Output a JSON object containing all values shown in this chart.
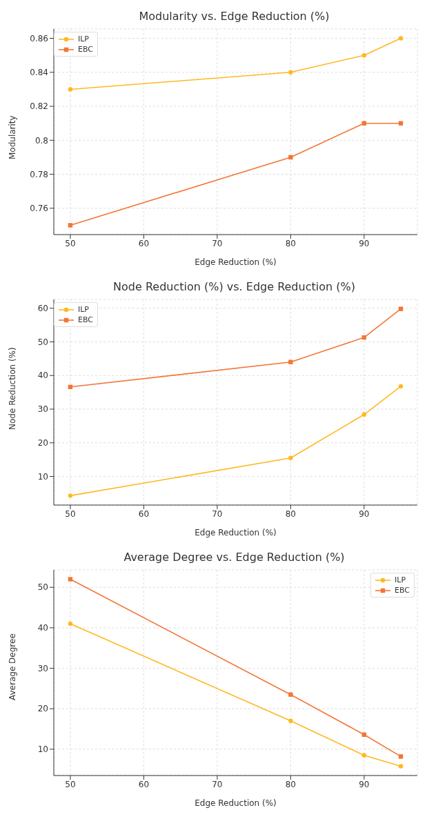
{
  "chart_data": [
    {
      "type": "line",
      "title": "Modularity vs. Edge Reduction (%)",
      "xlabel": "Edge Reduction (%)",
      "ylabel": "Modularity",
      "x": [
        50,
        80,
        90,
        95
      ],
      "series": [
        {
          "name": "ILP",
          "color": "#ffb81f",
          "marker": "circle",
          "values": [
            0.83,
            0.84,
            0.85,
            0.86
          ]
        },
        {
          "name": "EBC",
          "color": "#f47535",
          "marker": "square",
          "values": [
            0.75,
            0.79,
            0.81,
            0.81
          ]
        }
      ],
      "xlim": [
        47.75,
        97.25
      ],
      "xticks": [
        50,
        60,
        70,
        80,
        90
      ],
      "ylim": [
        0.7445,
        0.8655
      ],
      "yticks": [
        0.76,
        0.78,
        0.8,
        0.82,
        0.84,
        0.86
      ],
      "grid": true,
      "legend": "top left"
    },
    {
      "type": "line",
      "title": "Node Reduction (%) vs. Edge Reduction (%)",
      "xlabel": "Edge Reduction (%)",
      "ylabel": "Node Reduction (%)",
      "x": [
        50,
        80,
        90,
        95
      ],
      "series": [
        {
          "name": "ILP",
          "color": "#ffb81f",
          "marker": "circle",
          "values": [
            4.3,
            15.5,
            28.4,
            36.8
          ]
        },
        {
          "name": "EBC",
          "color": "#f47535",
          "marker": "square",
          "values": [
            36.6,
            44.0,
            51.3,
            59.8
          ]
        }
      ],
      "xlim": [
        47.75,
        97.25
      ],
      "xticks": [
        50,
        60,
        70,
        80,
        90
      ],
      "ylim": [
        1.5,
        62.6
      ],
      "yticks": [
        10,
        20,
        30,
        40,
        50,
        60
      ],
      "grid": true,
      "legend": "top left"
    },
    {
      "type": "line",
      "title": "Average Degree vs. Edge Reduction (%)",
      "xlabel": "Edge Reduction (%)",
      "ylabel": "Average Degree",
      "x": [
        50,
        80,
        90,
        95
      ],
      "series": [
        {
          "name": "ILP",
          "color": "#ffb81f",
          "marker": "circle",
          "values": [
            41,
            17,
            8.5,
            5.8
          ]
        },
        {
          "name": "EBC",
          "color": "#f47535",
          "marker": "square",
          "values": [
            52,
            23.5,
            13.6,
            8.2
          ]
        }
      ],
      "xlim": [
        47.75,
        97.25
      ],
      "xticks": [
        50,
        60,
        70,
        80,
        90
      ],
      "ylim": [
        3.5,
        54.3
      ],
      "yticks": [
        10,
        20,
        30,
        40,
        50
      ],
      "grid": true,
      "legend": "top right"
    }
  ]
}
